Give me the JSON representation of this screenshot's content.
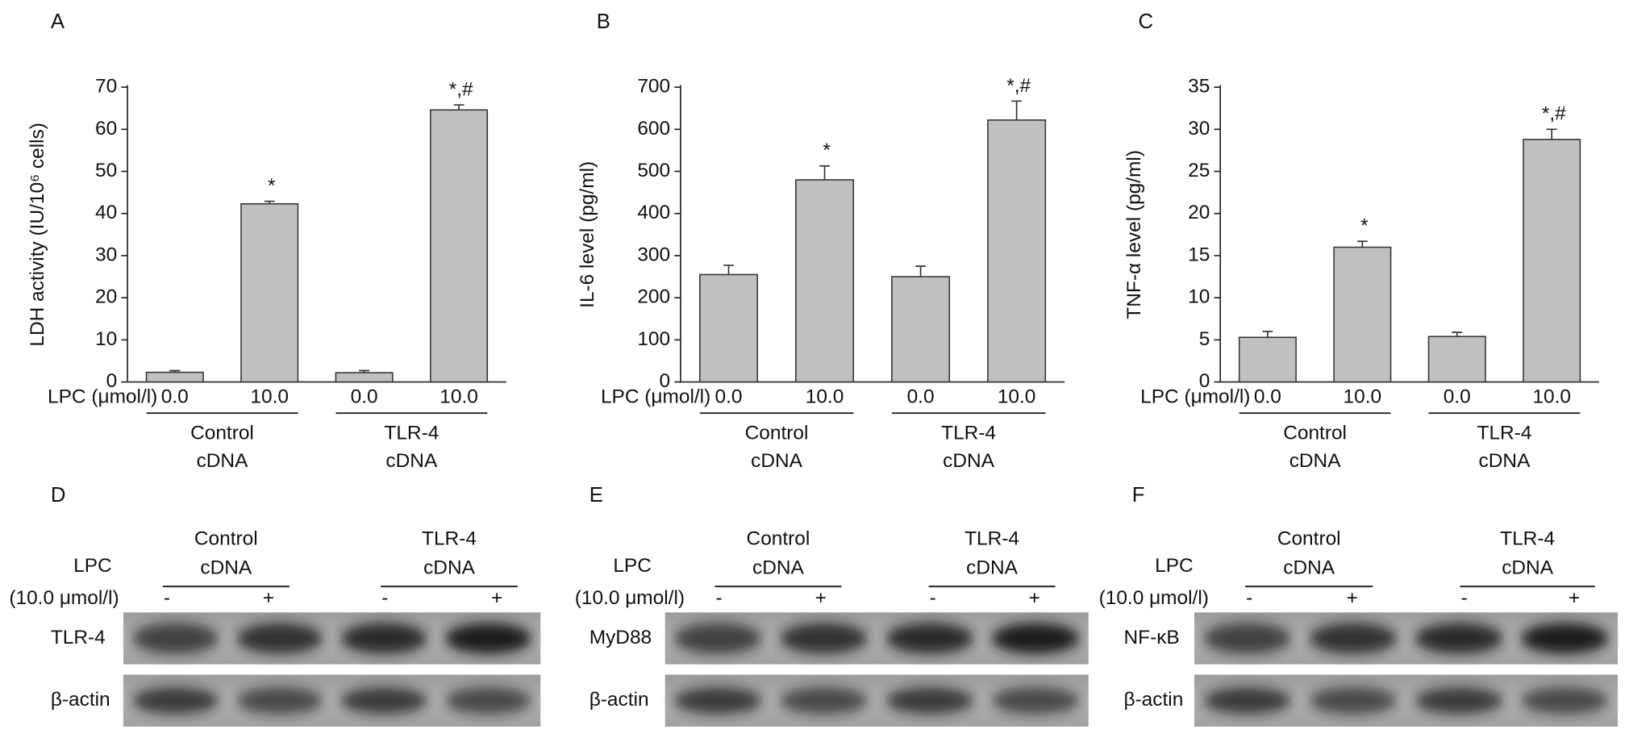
{
  "chart_data": [
    {
      "type": "bar",
      "panel": "A",
      "ylabel": "LDH activity (IU/10⁶ cells)",
      "x_prefix": "LPC (μmol/l)",
      "categories": [
        "0.0",
        "10.0",
        "0.0",
        "10.0"
      ],
      "groups": [
        [
          "Control",
          "cDNA"
        ],
        [
          "TLR-4",
          "cDNA"
        ]
      ],
      "values": [
        2.3,
        42.3,
        2.2,
        64.6
      ],
      "errors": [
        0.4,
        0.6,
        0.5,
        1.2
      ],
      "annotations": [
        null,
        "*",
        null,
        "*,#"
      ],
      "color": "#c0c0c0",
      "ylim": [
        0,
        70
      ],
      "yticks": [
        0,
        10,
        20,
        30,
        40,
        50,
        60,
        70
      ]
    },
    {
      "type": "bar",
      "panel": "B",
      "ylabel": "IL-6 level (pg/ml)",
      "x_prefix": "LPC (μmol/l)",
      "categories": [
        "0.0",
        "10.0",
        "0.0",
        "10.0"
      ],
      "groups": [
        [
          "Control",
          "cDNA"
        ],
        [
          "TLR-4",
          "cDNA"
        ]
      ],
      "values": [
        255,
        480,
        250,
        622
      ],
      "errors": [
        22,
        33,
        25,
        45
      ],
      "annotations": [
        null,
        "*",
        null,
        "*,#"
      ],
      "color": "#c0c0c0",
      "ylim": [
        0,
        700
      ],
      "yticks": [
        0,
        100,
        200,
        300,
        400,
        500,
        600,
        700
      ]
    },
    {
      "type": "bar",
      "panel": "C",
      "ylabel": "TNF-α level (pg/ml)",
      "x_prefix": "LPC (μmol/l)",
      "categories": [
        "0.0",
        "10.0",
        "0.0",
        "10.0"
      ],
      "groups": [
        [
          "Control",
          "cDNA"
        ],
        [
          "TLR-4",
          "cDNA"
        ]
      ],
      "values": [
        5.3,
        16,
        5.4,
        28.8
      ],
      "errors": [
        0.7,
        0.7,
        0.5,
        1.2
      ],
      "annotations": [
        null,
        "*",
        null,
        "*,#"
      ],
      "color": "#c0c0c0",
      "ylim": [
        0,
        35
      ],
      "yticks": [
        0,
        5,
        10,
        15,
        20,
        25,
        30,
        35
      ]
    }
  ],
  "blots": [
    {
      "panel": "D",
      "treatment": [
        "LPC",
        "(10.0 μmol/l)"
      ],
      "groups": [
        [
          "Control",
          "cDNA"
        ],
        [
          "TLR-4",
          "cDNA"
        ]
      ],
      "lanes": [
        "-",
        "+",
        "-",
        "+"
      ],
      "rows": [
        "TLR-4",
        "β-actin"
      ]
    },
    {
      "panel": "E",
      "treatment": [
        "LPC",
        "(10.0 μmol/l)"
      ],
      "groups": [
        [
          "Control",
          "cDNA"
        ],
        [
          "TLR-4",
          "cDNA"
        ]
      ],
      "lanes": [
        "-",
        "+",
        "-",
        "+"
      ],
      "rows": [
        "MyD88",
        "β-actin"
      ]
    },
    {
      "panel": "F",
      "treatment": [
        "LPC",
        "(10.0 μmol/l)"
      ],
      "groups": [
        [
          "Control",
          "cDNA"
        ],
        [
          "TLR-4",
          "cDNA"
        ]
      ],
      "lanes": [
        "-",
        "+",
        "-",
        "+"
      ],
      "rows": [
        "NF-κB",
        "β-actin"
      ]
    }
  ]
}
